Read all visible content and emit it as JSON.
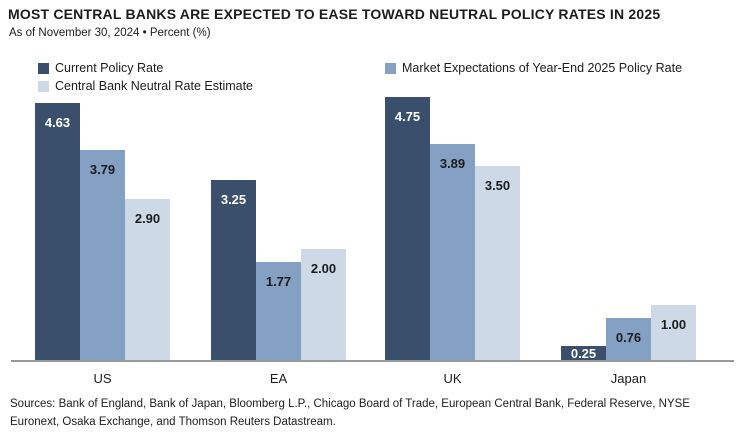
{
  "header": {
    "title": "MOST CENTRAL BANKS ARE EXPECTED TO EASE TOWARD NEUTRAL POLICY RATES IN 2025",
    "subtitle": "As of November 30, 2024 • Percent (%)"
  },
  "colors": {
    "series_current": "#394F6B",
    "series_market": "#84A0C2",
    "series_neutral": "#CDD9E6",
    "axis_line": "#999999",
    "text": "#1C1C1C"
  },
  "chart_data": {
    "type": "bar",
    "title": "MOST CENTRAL BANKS ARE EXPECTED TO EASE TOWARD NEUTRAL POLICY RATES IN 2025",
    "subtitle": "As of November 30, 2024 • Percent (%)",
    "categories": [
      "US",
      "EA",
      "UK",
      "Japan"
    ],
    "series": [
      {
        "name": "Current Policy Rate",
        "color": "#394F6B",
        "label_color": "#FFFFFF",
        "values": [
          4.63,
          3.25,
          4.75,
          0.25
        ]
      },
      {
        "name": "Market Expectations of Year-End 2025 Policy Rate",
        "color": "#84A0C2",
        "label_color": "#1C1C1C",
        "values": [
          3.79,
          1.77,
          3.89,
          0.76
        ]
      },
      {
        "name": "Central Bank Neutral Rate Estimate",
        "color": "#CDD9E6",
        "label_color": "#1C1C1C",
        "values": [
          2.9,
          2.0,
          3.5,
          1.0
        ]
      }
    ],
    "xlabel": "",
    "ylabel": "Percent (%)",
    "ylim": [
      0,
      4.8
    ],
    "grid": false,
    "legend_position": "top",
    "value_labels": "inside-top",
    "value_format": "0.00"
  },
  "footer": {
    "sources": "Sources: Bank of England, Bank of Japan, Bloomberg L.P., Chicago Board of Trade, European Central Bank, Federal Reserve, NYSE Euronext, Osaka Exchange, and Thomson Reuters Datastream."
  }
}
